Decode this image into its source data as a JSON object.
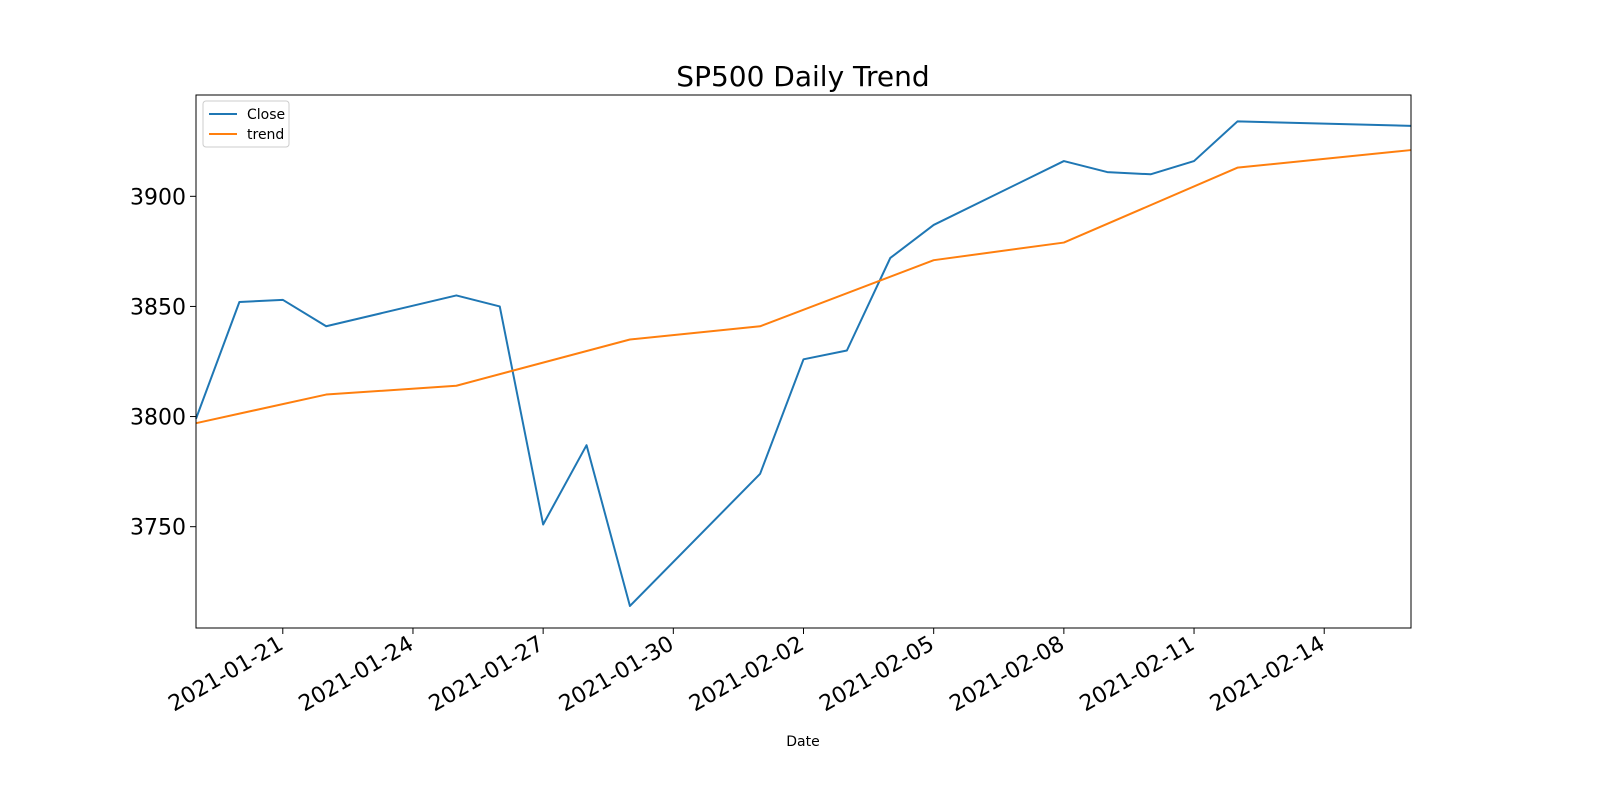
{
  "chart_data": {
    "type": "line",
    "title": "SP500 Daily Trend",
    "xlabel": "Date",
    "ylabel": "",
    "x_type": "date",
    "xlim": [
      "2021-01-19",
      "2021-02-16"
    ],
    "ylim": [
      3704,
      3946
    ],
    "x_ticks": [
      "2021-01-21",
      "2021-01-24",
      "2021-01-27",
      "2021-01-30",
      "2021-02-02",
      "2021-02-05",
      "2021-02-08",
      "2021-02-11",
      "2021-02-14"
    ],
    "y_ticks": [
      3750,
      3800,
      3850,
      3900
    ],
    "x_tick_labels": [
      "2021-01-21",
      "2021-01-24",
      "2021-01-27",
      "2021-01-30",
      "2021-02-02",
      "2021-02-05",
      "2021-02-08",
      "2021-02-11",
      "2021-02-14"
    ],
    "y_tick_labels": [
      "3750",
      "3800",
      "3850",
      "3900"
    ],
    "grid": false,
    "legend": {
      "position": "top-left",
      "entries": [
        "Close",
        "trend"
      ]
    },
    "series": [
      {
        "name": "Close",
        "color": "#1f77b4",
        "points": [
          [
            "2021-01-19",
            3799
          ],
          [
            "2021-01-20",
            3852
          ],
          [
            "2021-01-21",
            3853
          ],
          [
            "2021-01-22",
            3841
          ],
          [
            "2021-01-25",
            3855
          ],
          [
            "2021-01-26",
            3850
          ],
          [
            "2021-01-27",
            3751
          ],
          [
            "2021-01-28",
            3787
          ],
          [
            "2021-01-29",
            3714
          ],
          [
            "2021-02-01",
            3774
          ],
          [
            "2021-02-02",
            3826
          ],
          [
            "2021-02-03",
            3830
          ],
          [
            "2021-02-04",
            3872
          ],
          [
            "2021-02-05",
            3887
          ],
          [
            "2021-02-08",
            3916
          ],
          [
            "2021-02-09",
            3911
          ],
          [
            "2021-02-10",
            3910
          ],
          [
            "2021-02-11",
            3916
          ],
          [
            "2021-02-12",
            3934
          ],
          [
            "2021-02-16",
            3932
          ]
        ]
      },
      {
        "name": "trend",
        "color": "#ff7f0e",
        "points": [
          [
            "2021-01-19",
            3797
          ],
          [
            "2021-01-22",
            3810
          ],
          [
            "2021-01-25",
            3814
          ],
          [
            "2021-01-29",
            3835
          ],
          [
            "2021-02-01",
            3841
          ],
          [
            "2021-02-05",
            3871
          ],
          [
            "2021-02-08",
            3879
          ],
          [
            "2021-02-12",
            3913
          ],
          [
            "2021-02-16",
            3921
          ]
        ]
      }
    ]
  }
}
